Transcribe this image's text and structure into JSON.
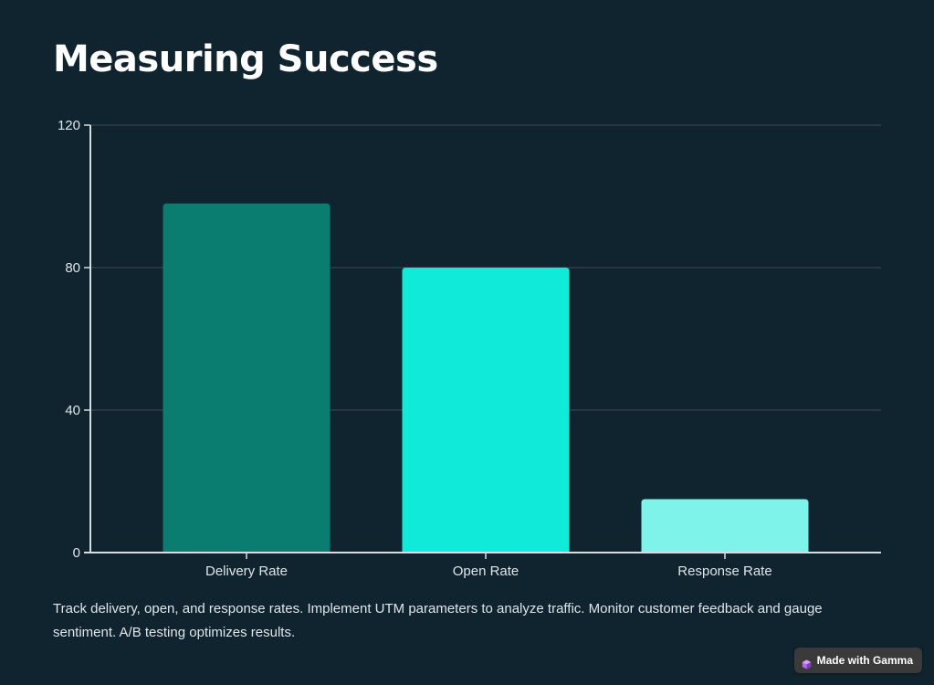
{
  "slide": {
    "title": "Measuring Success",
    "caption": "Track delivery, open, and response rates. Implement UTM parameters to analyze traffic. Monitor customer feedback and gauge sentiment. A/B testing optimizes results."
  },
  "badge": {
    "label": "Made with Gamma",
    "icon": "gamma-logo-icon"
  },
  "colors": {
    "background": "#10242f",
    "axis": "#d8dde0",
    "grid": "#3a4d57",
    "bars": [
      "#0b7c70",
      "#0fead9",
      "#7ef3ea"
    ]
  },
  "chart_data": {
    "type": "bar",
    "categories": [
      "Delivery Rate",
      "Open Rate",
      "Response Rate"
    ],
    "values": [
      98,
      80,
      15
    ],
    "yticks": [
      0,
      40,
      80,
      120
    ],
    "ylim": [
      0,
      120
    ],
    "title": "",
    "xlabel": "",
    "ylabel": "",
    "grid": true
  }
}
